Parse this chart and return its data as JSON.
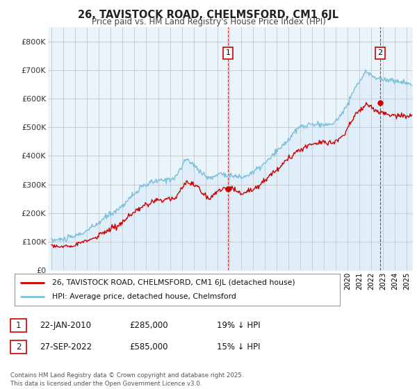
{
  "title": "26, TAVISTOCK ROAD, CHELMSFORD, CM1 6JL",
  "subtitle": "Price paid vs. HM Land Registry's House Price Index (HPI)",
  "hpi_color": "#7bbfdd",
  "hpi_fill": "#d6eaf8",
  "price_color": "#cc0000",
  "marker_color": "#cc0000",
  "dashed_color": "#cc0000",
  "ylim": [
    0,
    850000
  ],
  "yticks": [
    0,
    100000,
    200000,
    300000,
    400000,
    500000,
    600000,
    700000,
    800000
  ],
  "ytick_labels": [
    "£0",
    "£100K",
    "£200K",
    "£300K",
    "£400K",
    "£500K",
    "£600K",
    "£700K",
    "£800K"
  ],
  "purchase1": {
    "date_num": 2009.9,
    "price": 285000,
    "label": "1",
    "year_str": "22-JAN-2010",
    "price_str": "£285,000",
    "hpi_str": "19% ↓ HPI"
  },
  "purchase2": {
    "date_num": 2022.73,
    "price": 585000,
    "label": "2",
    "year_str": "27-SEP-2022",
    "price_str": "£585,000",
    "hpi_str": "15% ↓ HPI"
  },
  "legend_label1": "26, TAVISTOCK ROAD, CHELMSFORD, CM1 6JL (detached house)",
  "legend_label2": "HPI: Average price, detached house, Chelmsford",
  "footer": "Contains HM Land Registry data © Crown copyright and database right 2025.\nThis data is licensed under the Open Government Licence v3.0.",
  "background_color": "#ffffff",
  "plot_bg_color": "#eaf4fb"
}
